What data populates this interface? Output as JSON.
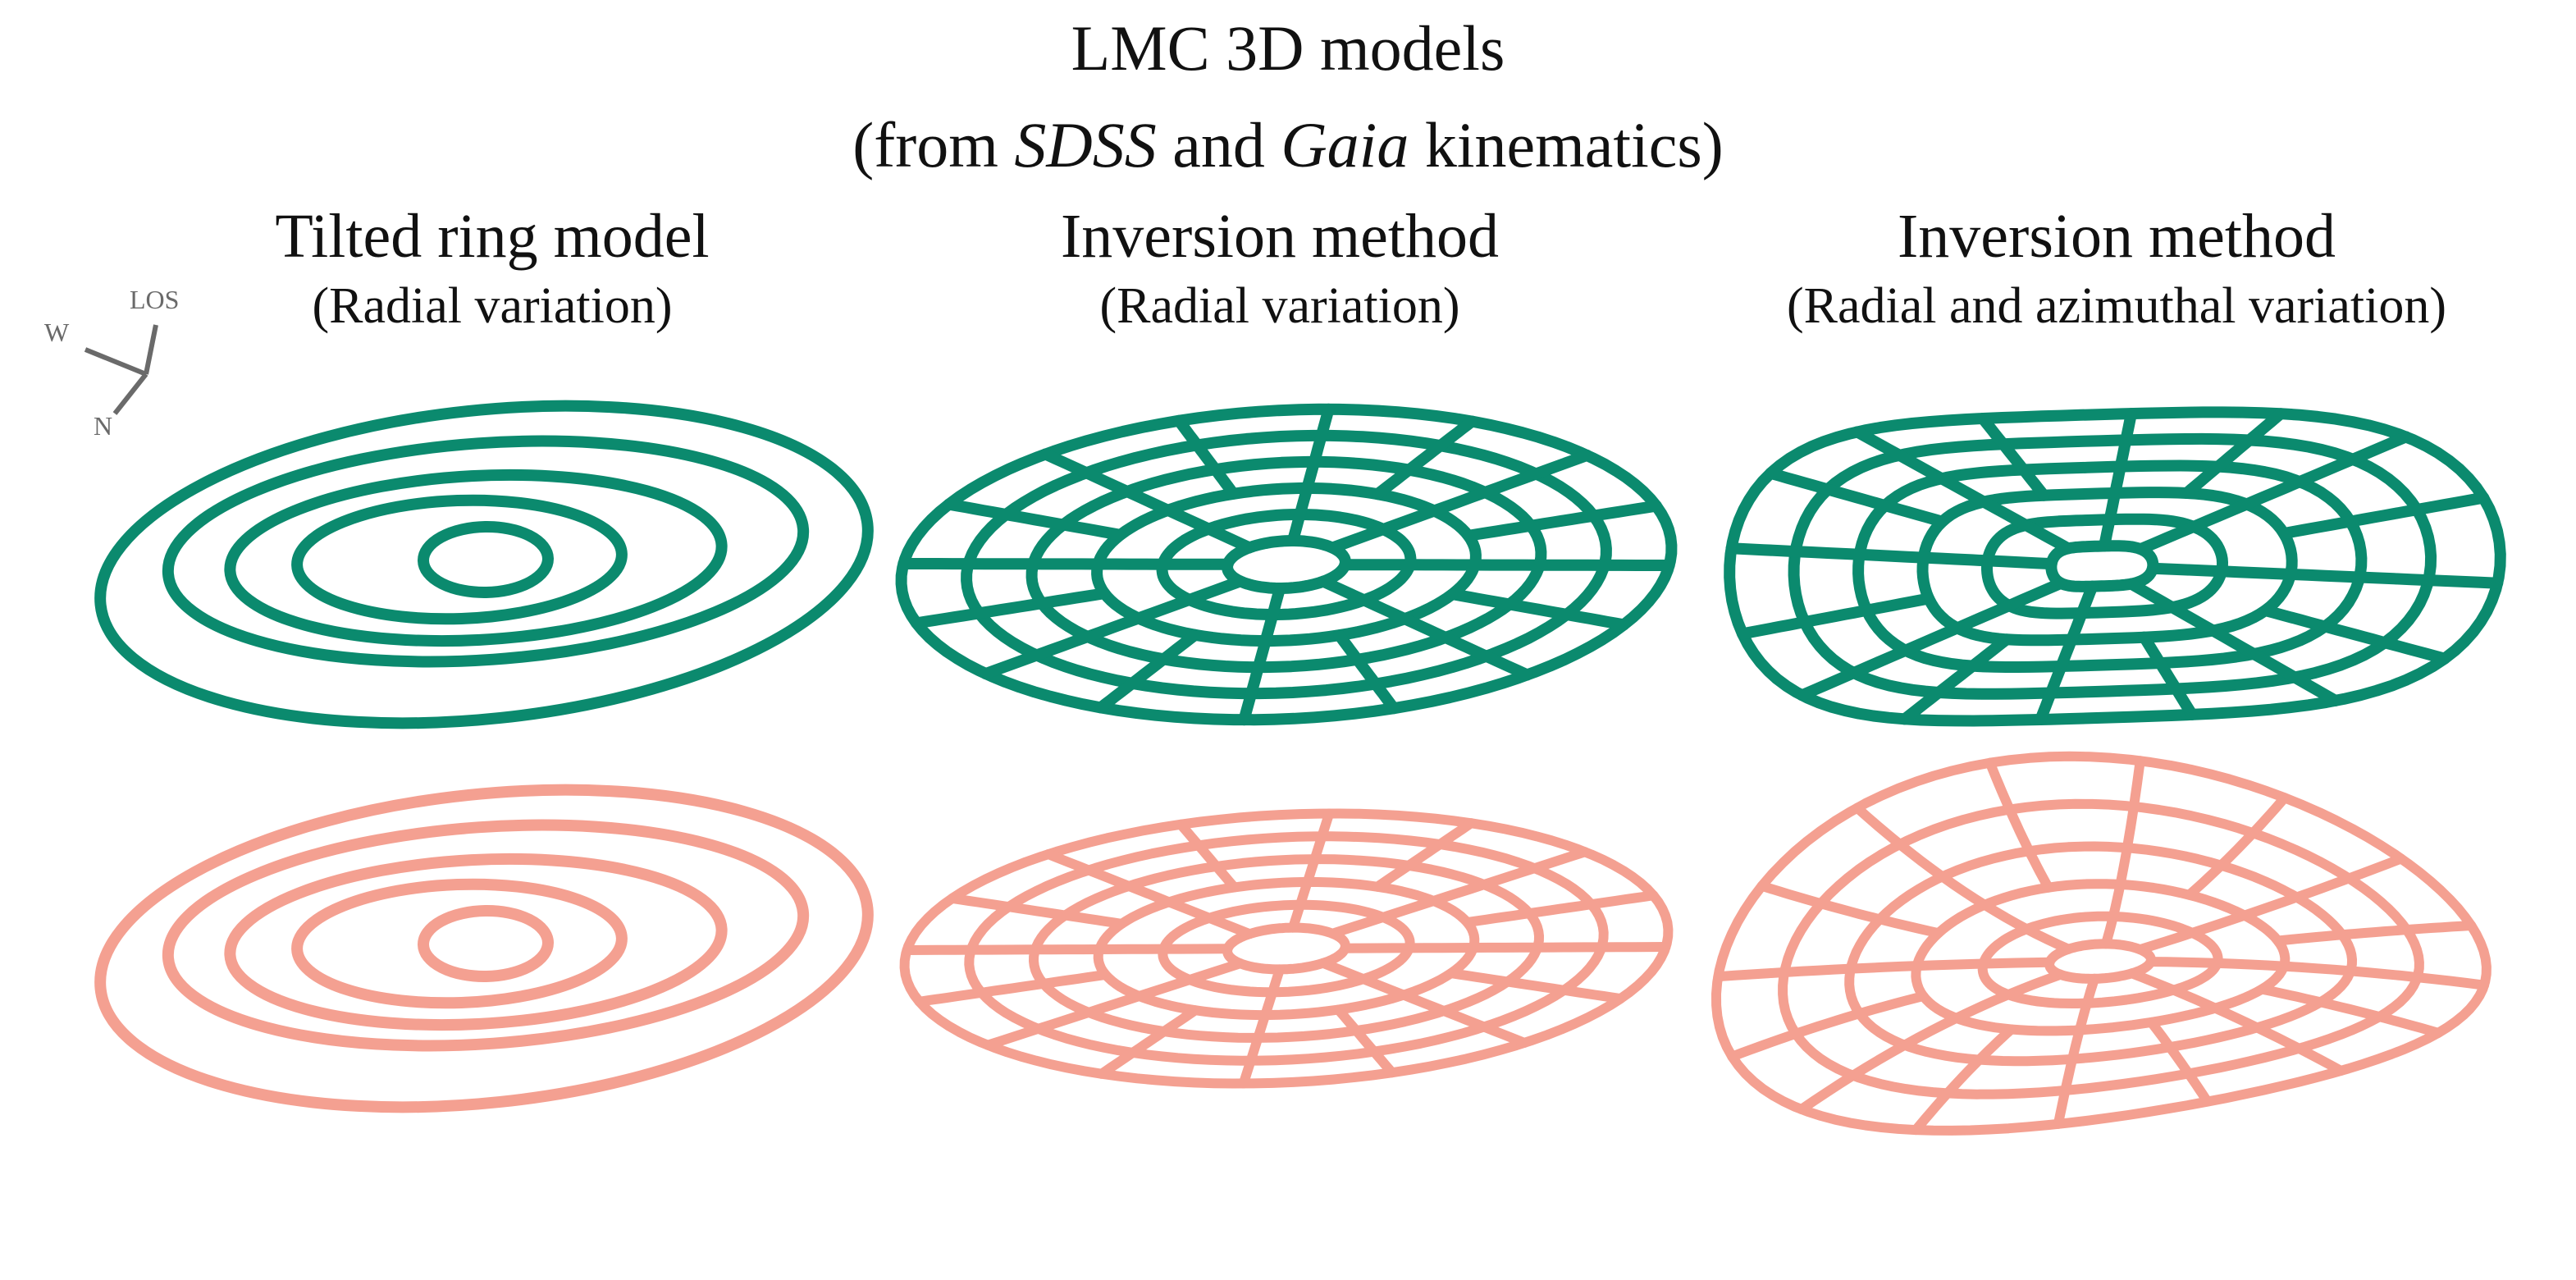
{
  "figure": {
    "title_line1": "LMC 3D models",
    "title_line2_pre": "(from ",
    "title_line2_sdss": "SDSS",
    "title_line2_mid": " and ",
    "title_line2_gaia": "Gaia",
    "title_line2_post": " kinematics)"
  },
  "panels": [
    {
      "title": "Tilted ring model",
      "subtitle": "(Radial variation)"
    },
    {
      "title": "Inversion method",
      "subtitle": "(Radial variation)"
    },
    {
      "title": "Inversion method",
      "subtitle": "(Radial and azimuthal variation)"
    }
  ],
  "compass": {
    "los": "LOS",
    "w": "W",
    "n": "N"
  },
  "colors": {
    "top_row": "#0b8a6e",
    "bottom_row": "#f4a091",
    "compass": "#6a6a6a"
  }
}
